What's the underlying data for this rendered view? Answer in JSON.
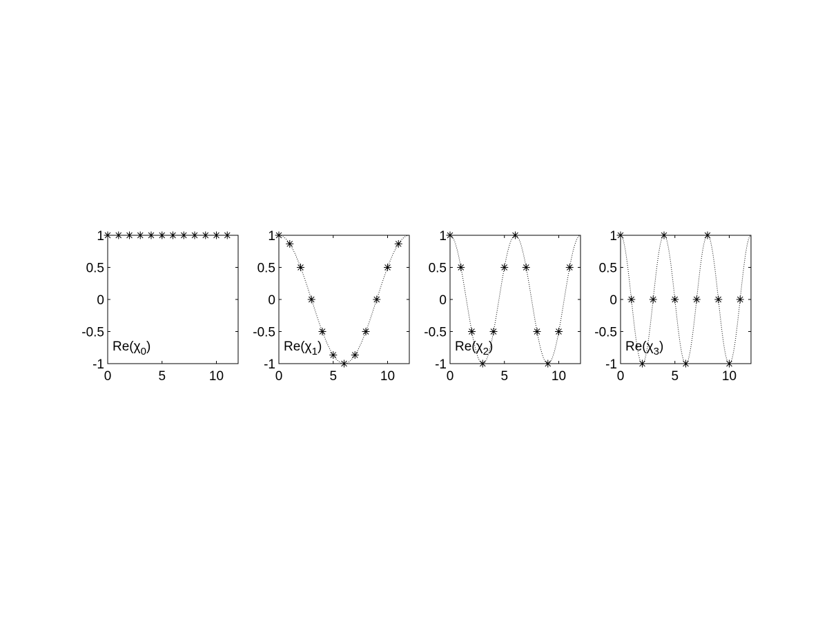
{
  "chart_data": [
    {
      "type": "scatter",
      "label_prefix": "Re(χ",
      "label_sub": "0",
      "label_suffix": ")",
      "x": [
        0,
        1,
        2,
        3,
        4,
        5,
        6,
        7,
        8,
        9,
        10,
        11
      ],
      "y": [
        1,
        1,
        1,
        1,
        1,
        1,
        1,
        1,
        1,
        1,
        1,
        1
      ],
      "xlim": [
        0,
        12
      ],
      "ylim": [
        -1,
        1
      ],
      "xticks": [
        0,
        5,
        10
      ],
      "yticks": [
        -1,
        -0.5,
        0,
        0.5,
        1
      ],
      "marker": "*",
      "curve_frequency": 0
    },
    {
      "type": "scatter",
      "label_prefix": "Re(χ",
      "label_sub": "1",
      "label_suffix": ")",
      "x": [
        0,
        1,
        2,
        3,
        4,
        5,
        6,
        7,
        8,
        9,
        10,
        11
      ],
      "y": [
        1,
        0.866,
        0.5,
        0,
        -0.5,
        -0.866,
        -1,
        -0.866,
        -0.5,
        0,
        0.5,
        0.866
      ],
      "xlim": [
        0,
        12
      ],
      "ylim": [
        -1,
        1
      ],
      "xticks": [
        0,
        5,
        10
      ],
      "yticks": [
        -1,
        -0.5,
        0,
        0.5,
        1
      ],
      "marker": "*",
      "curve_frequency": 1
    },
    {
      "type": "scatter",
      "label_prefix": "Re(χ",
      "label_sub": "2",
      "label_suffix": ")",
      "x": [
        0,
        1,
        2,
        3,
        4,
        5,
        6,
        7,
        8,
        9,
        10,
        11
      ],
      "y": [
        1,
        0.5,
        -0.5,
        -1,
        -0.5,
        0.5,
        1,
        0.5,
        -0.5,
        -1,
        -0.5,
        0.5
      ],
      "xlim": [
        0,
        12
      ],
      "ylim": [
        -1,
        1
      ],
      "xticks": [
        0,
        5,
        10
      ],
      "yticks": [
        -1,
        -0.5,
        0,
        0.5,
        1
      ],
      "marker": "*",
      "curve_frequency": 2
    },
    {
      "type": "scatter",
      "label_prefix": "Re(χ",
      "label_sub": "3",
      "label_suffix": ")",
      "x": [
        0,
        1,
        2,
        3,
        4,
        5,
        6,
        7,
        8,
        9,
        10,
        11
      ],
      "y": [
        1,
        0,
        -1,
        0,
        1,
        0,
        -1,
        0,
        1,
        0,
        -1,
        0
      ],
      "xlim": [
        0,
        12
      ],
      "ylim": [
        -1,
        1
      ],
      "xticks": [
        0,
        5,
        10
      ],
      "yticks": [
        -1,
        -0.5,
        0,
        0.5,
        1
      ],
      "marker": "*",
      "curve_frequency": 3
    }
  ]
}
